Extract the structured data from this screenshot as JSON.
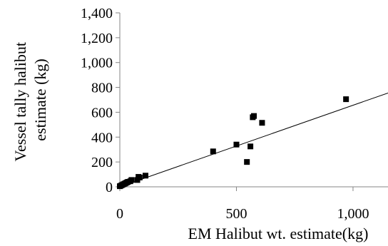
{
  "chart_data": {
    "type": "scatter",
    "title": "",
    "xlabel": "EM Halibut wt. estimate(kg)",
    "ylabel_lines": [
      "Vessel tally halibut",
      "estimate (kg)"
    ],
    "xlim": [
      0,
      1150
    ],
    "ylim": [
      0,
      1400
    ],
    "x_ticks": [
      {
        "value": 0,
        "label": "0"
      },
      {
        "value": 500,
        "label": "500"
      },
      {
        "value": 1000,
        "label": "1,000"
      }
    ],
    "y_ticks": [
      {
        "value": 0,
        "label": "0"
      },
      {
        "value": 200,
        "label": "200"
      },
      {
        "value": 400,
        "label": "400"
      },
      {
        "value": 600,
        "label": "600"
      },
      {
        "value": 800,
        "label": "800"
      },
      {
        "value": 1000,
        "label": "1,000"
      },
      {
        "value": 1200,
        "label": "1,200"
      },
      {
        "value": 1400,
        "label": "1,400"
      }
    ],
    "grid": false,
    "legend": "none",
    "series": [
      {
        "marker": "square",
        "color": "#000000",
        "points": [
          {
            "x": 0,
            "y": 5
          },
          {
            "x": 5,
            "y": 10
          },
          {
            "x": 10,
            "y": 15
          },
          {
            "x": 15,
            "y": 20
          },
          {
            "x": 20,
            "y": 25
          },
          {
            "x": 25,
            "y": 30
          },
          {
            "x": 30,
            "y": 35
          },
          {
            "x": 35,
            "y": 40
          },
          {
            "x": 45,
            "y": 45
          },
          {
            "x": 50,
            "y": 55
          },
          {
            "x": 75,
            "y": 55
          },
          {
            "x": 80,
            "y": 80
          },
          {
            "x": 85,
            "y": 75
          },
          {
            "x": 110,
            "y": 90
          },
          {
            "x": 400,
            "y": 285
          },
          {
            "x": 500,
            "y": 340
          },
          {
            "x": 545,
            "y": 200
          },
          {
            "x": 560,
            "y": 325
          },
          {
            "x": 570,
            "y": 560
          },
          {
            "x": 575,
            "y": 570
          },
          {
            "x": 610,
            "y": 515
          },
          {
            "x": 970,
            "y": 705
          }
        ]
      }
    ],
    "trendline": {
      "type": "linear",
      "color": "#000000",
      "x": [
        0,
        1150
      ],
      "y": [
        0,
        755
      ]
    }
  }
}
